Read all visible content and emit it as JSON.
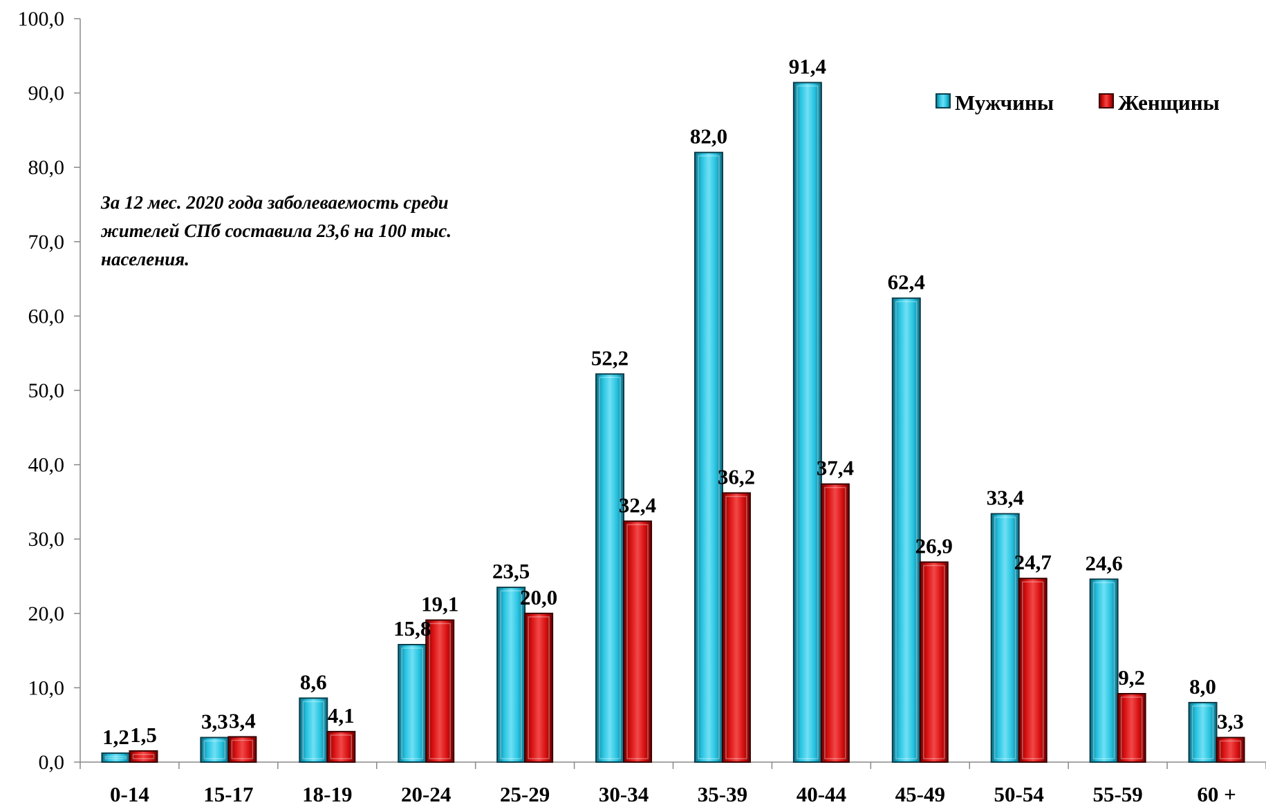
{
  "chart_data": {
    "type": "bar",
    "categories": [
      "0-14",
      "15-17",
      "18-19",
      "20-24",
      "25-29",
      "30-34",
      "35-39",
      "40-44",
      "45-49",
      "50-54",
      "55-59",
      "60 +"
    ],
    "series": [
      {
        "name": "Мужчины",
        "color": "#1fb4d2",
        "values": [
          1.2,
          3.3,
          8.6,
          15.8,
          23.5,
          52.2,
          82.0,
          91.4,
          62.4,
          33.4,
          24.6,
          8.0
        ],
        "labels": [
          "1,2",
          "3,3",
          "8,6",
          "15,8",
          "23,5",
          "52,2",
          "82,0",
          "91,4",
          "62,4",
          "33,4",
          "24,6",
          "8,0"
        ]
      },
      {
        "name": "Женщины",
        "color": "#cc0a0a",
        "values": [
          1.5,
          3.4,
          4.1,
          19.1,
          20.0,
          32.4,
          36.2,
          37.4,
          26.9,
          24.7,
          9.2,
          3.3
        ],
        "labels": [
          "1,5",
          "3,4",
          "4,1",
          "19,1",
          "20,0",
          "32,4",
          "36,2",
          "37,4",
          "26,9",
          "24,7",
          "9,2",
          "3,3"
        ]
      }
    ],
    "ylim": [
      0,
      100
    ],
    "yticks": [
      "0,0",
      "10,0",
      "20,0",
      "30,0",
      "40,0",
      "50,0",
      "60,0",
      "70,0",
      "80,0",
      "90,0",
      "100,0"
    ],
    "title": "",
    "xlabel": "",
    "ylabel": "",
    "grid": false,
    "legend_position": "top-right",
    "annotation": [
      "За 12 мес. 2020 года заболеваемость среди",
      "жителей СПб составила 23,6 на 100 тыс.",
      "населения."
    ]
  }
}
